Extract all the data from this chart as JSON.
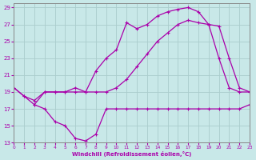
{
  "background_color": "#c8e8e8",
  "grid_color": "#aacccc",
  "line_color": "#aa00aa",
  "xlim": [
    0,
    23
  ],
  "ylim": [
    13,
    29.5
  ],
  "xticks": [
    0,
    1,
    2,
    3,
    4,
    5,
    6,
    7,
    8,
    9,
    10,
    11,
    12,
    13,
    14,
    15,
    16,
    17,
    18,
    19,
    20,
    21,
    22,
    23
  ],
  "yticks": [
    13,
    15,
    17,
    19,
    21,
    23,
    25,
    27,
    29
  ],
  "xlabel": "Windchill (Refroidissement éolien,°C)",
  "curve1_x": [
    0,
    1,
    2,
    3,
    4,
    5,
    6,
    7,
    8,
    9,
    10,
    11,
    12,
    13,
    14,
    15,
    16,
    17,
    18,
    19,
    20,
    21,
    22,
    23
  ],
  "curve1_y": [
    19.5,
    18.5,
    18.0,
    19.0,
    19.0,
    19.0,
    19.0,
    19.0,
    19.0,
    19.0,
    19.5,
    20.5,
    22.0,
    23.5,
    25.0,
    26.0,
    27.0,
    27.5,
    27.2,
    27.0,
    26.8,
    23.0,
    19.5,
    19.0
  ],
  "curve2_x": [
    0,
    1,
    2,
    3,
    4,
    5,
    6,
    7,
    8,
    9,
    10,
    11,
    12,
    13,
    14,
    15,
    16,
    17,
    18,
    19,
    20,
    21,
    22,
    23
  ],
  "curve2_y": [
    19.5,
    18.5,
    17.5,
    19.0,
    19.0,
    19.0,
    19.5,
    19.0,
    21.5,
    23.0,
    24.0,
    27.2,
    26.5,
    27.0,
    28.0,
    28.5,
    28.8,
    29.0,
    28.5,
    27.0,
    23.0,
    19.5,
    19.0,
    19.0
  ],
  "curve3_x": [
    2,
    3,
    4,
    5,
    6,
    7,
    8,
    9,
    10,
    11,
    12,
    13,
    14,
    15,
    16,
    17,
    18,
    19,
    20,
    21,
    22,
    23
  ],
  "curve3_y": [
    17.5,
    17.0,
    15.5,
    15.0,
    13.5,
    13.2,
    14.0,
    17.0,
    17.0,
    17.0,
    17.0,
    17.0,
    17.0,
    17.0,
    17.0,
    17.0,
    17.0,
    17.0,
    17.0,
    17.0,
    17.0,
    17.5
  ]
}
